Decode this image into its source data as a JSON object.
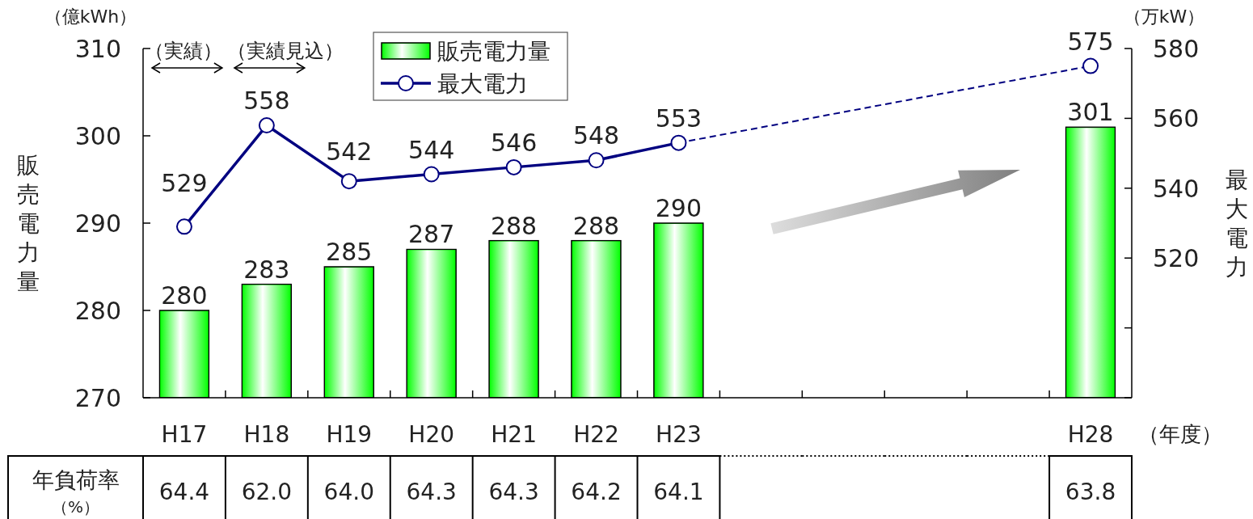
{
  "chart_data": [
    {
      "type": "bar",
      "ylabel": "販売電力量",
      "y2label": "最大電力",
      "xlabel": "（年度）",
      "annotations": [
        "（億kWh）",
        "（万kW）",
        "（実績）",
        "（実績見込）"
      ],
      "categories": [
        "H17",
        "H18",
        "H19",
        "H20",
        "H21",
        "H22",
        "H23",
        null,
        null,
        null,
        null,
        "H28"
      ],
      "series": [
        {
          "name": "販売電力量",
          "color": "#00ff00",
          "values": [
            280,
            283,
            285,
            287,
            288,
            288,
            290,
            null,
            null,
            null,
            null,
            301
          ]
        },
        {
          "type": "line",
          "axis": "y2",
          "color": "#000080",
          "marker": "none",
          "line_style": "dashed",
          "x": [
            "H23",
            "H28"
          ],
          "values": [
            553,
            575
          ],
          "value_labels": [
            null,
            null
          ]
        },
        {
          "name": "最大電力",
          "type": "line",
          "axis": "y2",
          "color": "#000080",
          "marker": "circle",
          "line_style": "solid",
          "values": [
            529,
            558,
            542,
            544,
            546,
            548,
            553,
            null,
            null,
            null,
            null,
            575
          ]
        }
      ],
      "ylim": [
        270,
        310
      ],
      "yticks": [
        270,
        280,
        290,
        300,
        310
      ],
      "y2lim": [
        480,
        580
      ],
      "y2ticks": [
        {
          "value": 480,
          "label": null
        },
        {
          "value": 500,
          "label": null
        },
        520,
        540,
        560,
        580
      ],
      "data_labels": true,
      "legend": "top"
    },
    {
      "type": "other",
      "categories": [
        null,
        null,
        null,
        null,
        null,
        null,
        null,
        null,
        null,
        null,
        null,
        null
      ],
      "series": [
        {
          "name": "年負荷率（%）",
          "values": [
            64.4,
            62.0,
            64.0,
            64.3,
            64.3,
            64.2,
            64.1,
            null,
            null,
            null,
            null,
            63.8
          ],
          "value_labels": [
            "64.4",
            "62.0",
            "64.0",
            "64.3",
            "64.3",
            "64.2",
            "64.1",
            null,
            null,
            null,
            null,
            "63.8"
          ]
        }
      ]
    }
  ]
}
